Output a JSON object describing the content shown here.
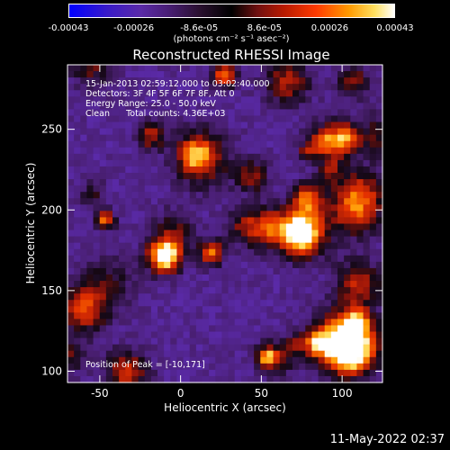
{
  "colorbar": {
    "tick_labels": [
      "-0.00043",
      "-0.00026",
      "-8.6e-05",
      "8.6e-05",
      "0.00026",
      "0.00043"
    ],
    "unit_label": "(photons cm⁻² s⁻¹ asec⁻²)",
    "range": [
      -0.00043,
      0.00043
    ]
  },
  "plot": {
    "title": "Reconstructed RHESSI Image",
    "info_lines": [
      "15-Jan-2013 02:59:12.000 to 03:02:40.000",
      "Detectors: 3F 4F 5F 6F 7F 8F, Att 0",
      "Energy Range: 25.0 - 50.0 keV",
      "Clean      Total counts: 4.36E+03"
    ],
    "peak_label": "Position of Peak = [-10,171]"
  },
  "footer": {
    "timestamp": "11-May-2022 02:37"
  },
  "chart_data": {
    "type": "heatmap",
    "title": "Reconstructed RHESSI Image",
    "xlabel": "Heliocentric X (arcsec)",
    "ylabel": "Heliocentric Y (arcsec)",
    "xlim": [
      -70,
      125
    ],
    "ylim": [
      93,
      290
    ],
    "x_ticks": [
      -50,
      0,
      50,
      100
    ],
    "y_ticks": [
      100,
      150,
      200,
      250
    ],
    "grid": false,
    "peak_position": [
      -10,
      171
    ],
    "colorbar_range": [
      -0.00043,
      0.00043
    ],
    "colormap": "blue-purple-black-red-orange-yellow-white",
    "pixel_size_arcsec": 4
  }
}
